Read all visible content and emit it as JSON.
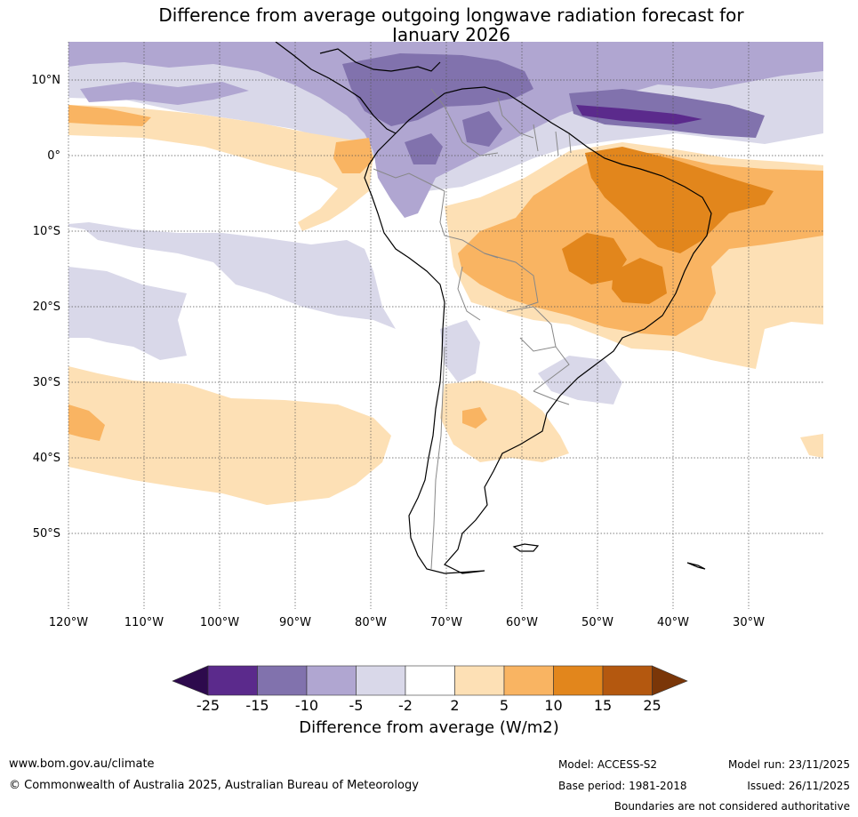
{
  "title": {
    "line1": "Difference from average outgoing longwave radiation forecast for",
    "line2": "January 2026"
  },
  "map": {
    "region": "South America and surrounding oceans",
    "lat_labels": [
      "10°N",
      "0°",
      "10°S",
      "20°S",
      "30°S",
      "40°S",
      "50°S"
    ],
    "lon_labels": [
      "120°W",
      "110°W",
      "100°W",
      "90°W",
      "80°W",
      "70°W",
      "60°W",
      "50°W",
      "40°W",
      "30°W"
    ]
  },
  "colorbar": {
    "title": "Difference from average (W/m2)",
    "ticks": [
      "-25",
      "-15",
      "-10",
      "-5",
      "-2",
      "2",
      "5",
      "10",
      "15",
      "25"
    ],
    "colors": [
      "#5b2a8c",
      "#8172ad",
      "#b0a6d1",
      "#d9d8e9",
      "#ffffff",
      "#fde0b5",
      "#f9b462",
      "#e2861c",
      "#b4580f"
    ],
    "under_color": "#2d0a4d",
    "over_color": "#7a3608"
  },
  "footer": {
    "website": "www.bom.gov.au/climate",
    "copyright": "© Commonwealth of Australia 2025, Australian Bureau of Meteorology",
    "model": "Model: ACCESS-S2",
    "base_period": "Base period: 1981-2018",
    "model_run": "Model run: 23/11/2025",
    "issued": "Issued: 26/11/2025",
    "disclaimer": "Boundaries are not considered authoritative"
  }
}
